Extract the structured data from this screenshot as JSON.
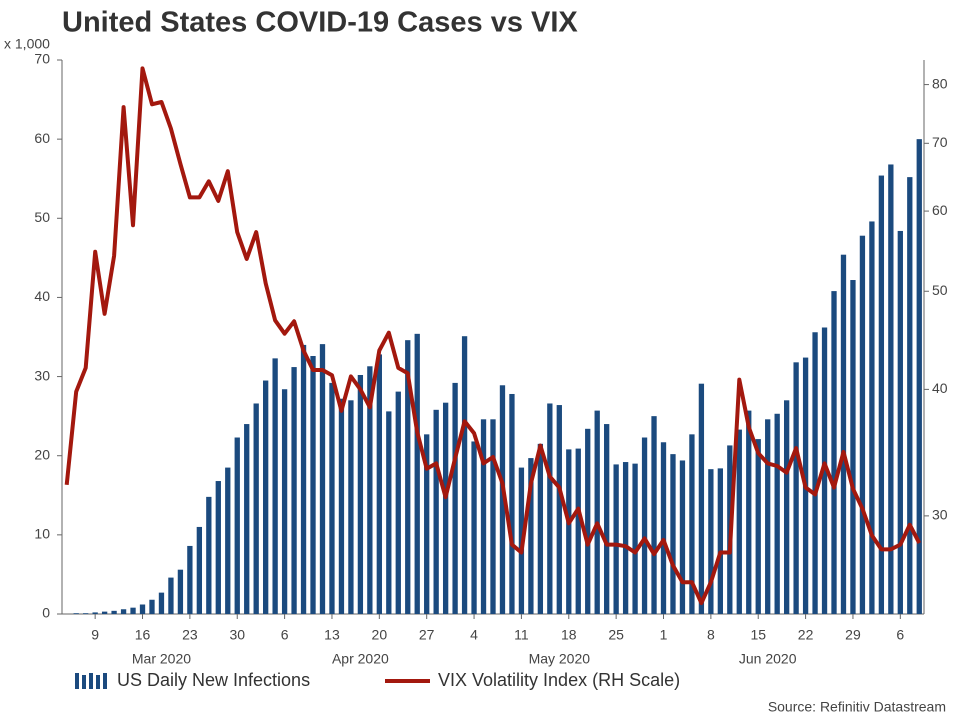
{
  "chart_data": {
    "type": "bar",
    "title": "United States COVID-19 Cases vs VIX",
    "y_unit_label": "x 1,000",
    "source": "Source: Refinitiv Datastream",
    "categories": [
      null,
      null,
      null,
      "9",
      null,
      null,
      null,
      null,
      "16",
      null,
      null,
      null,
      null,
      "23",
      null,
      null,
      null,
      null,
      "30",
      null,
      null,
      null,
      null,
      "6",
      null,
      null,
      null,
      null,
      "13",
      null,
      null,
      null,
      null,
      "20",
      null,
      null,
      null,
      null,
      "27",
      null,
      null,
      null,
      null,
      "4",
      null,
      null,
      null,
      null,
      "11",
      null,
      null,
      null,
      null,
      "18",
      null,
      null,
      null,
      null,
      "25",
      null,
      null,
      null,
      null,
      "1",
      null,
      null,
      null,
      null,
      "8",
      null,
      null,
      null,
      null,
      "15",
      null,
      null,
      null,
      null,
      "22",
      null,
      null,
      null,
      null,
      "29",
      null,
      null,
      null,
      null,
      "6",
      null,
      null
    ],
    "months": [
      {
        "label": "Mar 2020",
        "category": 10
      },
      {
        "label": "Apr 2020",
        "category": 31
      },
      {
        "label": "May 2020",
        "category": 52
      },
      {
        "label": "Jun 2020",
        "category": 74
      }
    ],
    "series": [
      {
        "name": "US Daily New Infections",
        "type": "bar",
        "color": "#1b4a7e",
        "values": [
          null,
          0.1,
          0.1,
          0.2,
          0.3,
          0.4,
          0.6,
          0.8,
          1.2,
          1.8,
          2.7,
          4.6,
          5.6,
          8.6,
          11,
          14.8,
          16.8,
          18.5,
          22.3,
          24,
          26.6,
          29.5,
          32.3,
          28.4,
          31.2,
          34,
          32.6,
          34.1,
          29.2,
          27.2,
          27.0,
          30.2,
          31.3,
          32.8,
          25.6,
          28.1,
          34.6,
          35.4,
          22.7,
          25.8,
          26.7,
          29.2,
          35.1,
          21.8,
          24.6,
          24.6,
          28.9,
          27.8,
          18.5,
          19.7,
          21.5,
          26.6,
          26.4,
          20.8,
          20.9,
          23.4,
          25.7,
          24,
          18.9,
          19.2,
          19,
          22.3,
          25,
          21.7,
          20.2,
          19.4,
          22.7,
          29.1,
          18.3,
          18.4,
          21.3,
          23.3,
          25.7,
          22.1,
          24.6,
          25.3,
          27,
          31.8,
          32.4,
          35.6,
          36.2,
          40.8,
          45.4,
          42.2,
          47.8,
          49.6,
          55.4,
          56.8,
          48.4,
          55.2,
          60
        ]
      },
      {
        "name": "VIX Volatility Index (RH Scale)",
        "type": "line",
        "axis": "y2",
        "color": "#a3180e",
        "values": [
          32.2,
          39.8,
          42.0,
          54.7,
          47.5,
          54.2,
          76.0,
          58.1,
          83.0,
          76.5,
          76.9,
          72.4,
          66.8,
          61.9,
          61.9,
          64.2,
          61.4,
          65.7,
          57.2,
          53.8,
          57.2,
          50.9,
          46.8,
          45.4,
          46.7,
          43.7,
          41.8,
          41.8,
          41.3,
          38.1,
          41.2,
          40.0,
          38.4,
          43.7,
          45.5,
          42.0,
          41.5,
          36.3,
          33.4,
          33.8,
          31.3,
          34.2,
          37.2,
          36.2,
          33.8,
          34.3,
          32.3,
          28.1,
          27.6,
          32.3,
          35.2,
          32.8,
          32.0,
          29.5,
          30.5,
          28.1,
          29.5,
          28.1,
          28.1,
          28.0,
          27.6,
          28.5,
          27.5,
          28.4,
          26.8,
          25.8,
          25.8,
          24.6,
          25.8,
          27.6,
          27.6,
          40.9,
          36.7,
          34.6,
          33.8,
          33.6,
          33.1,
          35.0,
          32.0,
          31.5,
          33.8,
          32.0,
          34.7,
          31.9,
          30.5,
          28.7,
          27.8,
          27.8,
          28.1,
          29.4,
          28.2
        ]
      }
    ],
    "ylim": [
      0,
      70
    ],
    "yticks": [
      0,
      10,
      20,
      30,
      40,
      50,
      60,
      70
    ],
    "y2lim": [
      24,
      84.6
    ],
    "y2ticks": [
      30,
      40,
      50,
      60,
      70,
      80
    ],
    "y2scale": "log",
    "grid": false
  }
}
